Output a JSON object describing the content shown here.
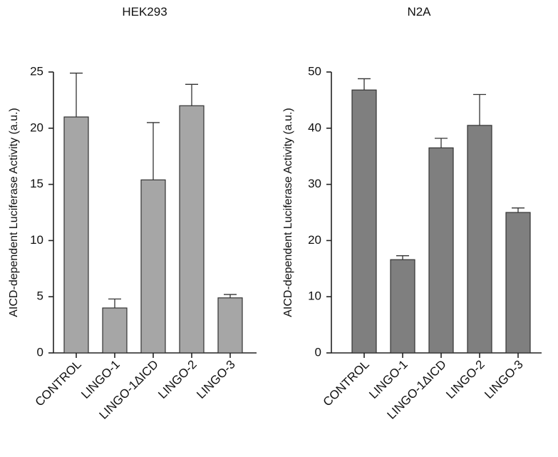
{
  "chart_data": [
    {
      "type": "bar",
      "title": "HEK293",
      "ylabel": "AICD-dependent Luciferase Activity (a.u.)",
      "xlabel": "",
      "categories": [
        "CONTROL",
        "LINGO-1",
        "LINGO-1ΔICD",
        "LINGO-2",
        "LINGO-3"
      ],
      "values": [
        21.0,
        4.0,
        15.4,
        22.0,
        4.9
      ],
      "errors": [
        3.9,
        0.8,
        5.1,
        1.9,
        0.3
      ],
      "ylim": [
        0,
        25
      ],
      "yticks": [
        0,
        5,
        10,
        15,
        20,
        25
      ],
      "bar_color": "#a6a6a6",
      "grid": false
    },
    {
      "type": "bar",
      "title": "N2A",
      "ylabel": "AICD-dependent Luciferase Activity (a.u.)",
      "xlabel": "",
      "categories": [
        "CONTROL",
        "LINGO-1",
        "LINGO-1ΔICD",
        "LINGO-2",
        "LINGO-3"
      ],
      "values": [
        46.8,
        16.6,
        36.5,
        40.5,
        25.0
      ],
      "errors": [
        2.0,
        0.7,
        1.7,
        5.5,
        0.8
      ],
      "ylim": [
        0,
        50
      ],
      "yticks": [
        0,
        10,
        20,
        30,
        40,
        50
      ],
      "bar_color": "#7f7f7f",
      "grid": false
    }
  ]
}
